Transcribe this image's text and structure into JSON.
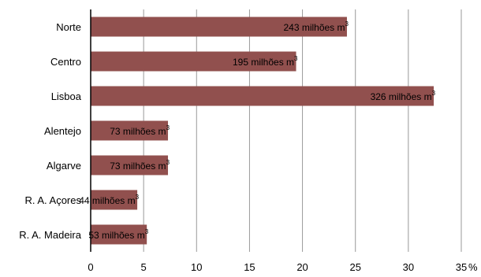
{
  "chart_data": {
    "type": "bar",
    "orientation": "horizontal",
    "categories": [
      "Norte",
      "Centro",
      "Lisboa",
      "Alentejo",
      "Algarve",
      "R. A. Açores",
      "R. A. Madeira"
    ],
    "values": [
      24.2,
      19.4,
      32.4,
      7.3,
      7.3,
      4.4,
      5.3
    ],
    "data_labels": [
      "243 milhões m",
      "195 milhões m",
      "326 milhões m",
      "73 milhões m",
      "73 milhões m",
      "44 milhões m",
      "53 milhões m"
    ],
    "data_label_superscript": "3",
    "x_ticks": [
      "0",
      "5",
      "10",
      "15",
      "20",
      "25",
      "30",
      "35"
    ],
    "x_unit": "%",
    "xlim": [
      0,
      35
    ],
    "grid": "vertical",
    "legend": "none",
    "bar_color": "#91504e"
  }
}
